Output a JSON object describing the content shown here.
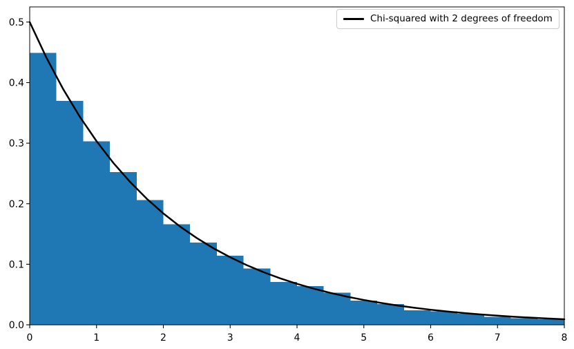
{
  "figure": {
    "background": "#ffffff",
    "text_color": "#000000",
    "spine_color": "#000000"
  },
  "chart_data": {
    "type": "bar",
    "subtype": "density-histogram-with-pdf-overlay",
    "title": "",
    "xlabel": "",
    "ylabel": "",
    "xlim": [
      0,
      8
    ],
    "ylim": [
      0,
      0.525
    ],
    "grid": false,
    "x_ticks": {
      "values": [
        0,
        1,
        2,
        3,
        4,
        5,
        6,
        7,
        8
      ],
      "labels": [
        "0",
        "1",
        "2",
        "3",
        "4",
        "5",
        "6",
        "7",
        "8"
      ]
    },
    "y_ticks": {
      "values": [
        0.0,
        0.1,
        0.2,
        0.3,
        0.4,
        0.5
      ],
      "labels": [
        "0.0",
        "0.1",
        "0.2",
        "0.3",
        "0.4",
        "0.5"
      ]
    },
    "histogram": {
      "color": "#1f77b4",
      "bin_start": 0,
      "bin_width": 0.4,
      "bin_edges": [
        0,
        0.4,
        0.8,
        1.2,
        1.6,
        2.0,
        2.4,
        2.8,
        3.2,
        3.6,
        4.0,
        4.4,
        4.8,
        5.2,
        5.6,
        6.0,
        6.4,
        6.8,
        7.2,
        7.6,
        8.0
      ],
      "densities": [
        0.449,
        0.37,
        0.303,
        0.252,
        0.206,
        0.166,
        0.136,
        0.114,
        0.093,
        0.071,
        0.064,
        0.053,
        0.04,
        0.034,
        0.024,
        0.022,
        0.018,
        0.013,
        0.011,
        0.009
      ]
    },
    "curve": {
      "name": "Chi-squared with 2 degrees of freedom",
      "formula": "y = 0.5 * exp(-x/2)",
      "color": "#000000",
      "line_width": 2.5,
      "x": [
        0,
        0.25,
        0.5,
        0.75,
        1.0,
        1.25,
        1.5,
        1.75,
        2.0,
        2.25,
        2.5,
        2.75,
        3.0,
        3.25,
        3.5,
        3.75,
        4.0,
        4.25,
        4.5,
        4.75,
        5.0,
        5.25,
        5.5,
        5.75,
        6.0,
        6.25,
        6.5,
        6.75,
        7.0,
        7.25,
        7.5,
        7.75,
        8.0
      ],
      "y": [
        0.5,
        0.4412,
        0.3894,
        0.3436,
        0.3033,
        0.2676,
        0.2362,
        0.2084,
        0.1839,
        0.1623,
        0.1433,
        0.1264,
        0.1116,
        0.0984,
        0.0869,
        0.0767,
        0.0677,
        0.0597,
        0.0527,
        0.0465,
        0.041,
        0.0362,
        0.032,
        0.0282,
        0.0249,
        0.022,
        0.0194,
        0.0171,
        0.0151,
        0.0133,
        0.0118,
        0.0104,
        0.0092
      ]
    },
    "legend": {
      "position": "upper right",
      "entries": [
        {
          "label": "Chi-squared with 2 degrees of freedom",
          "color": "#000000",
          "marker": "line"
        }
      ]
    }
  }
}
